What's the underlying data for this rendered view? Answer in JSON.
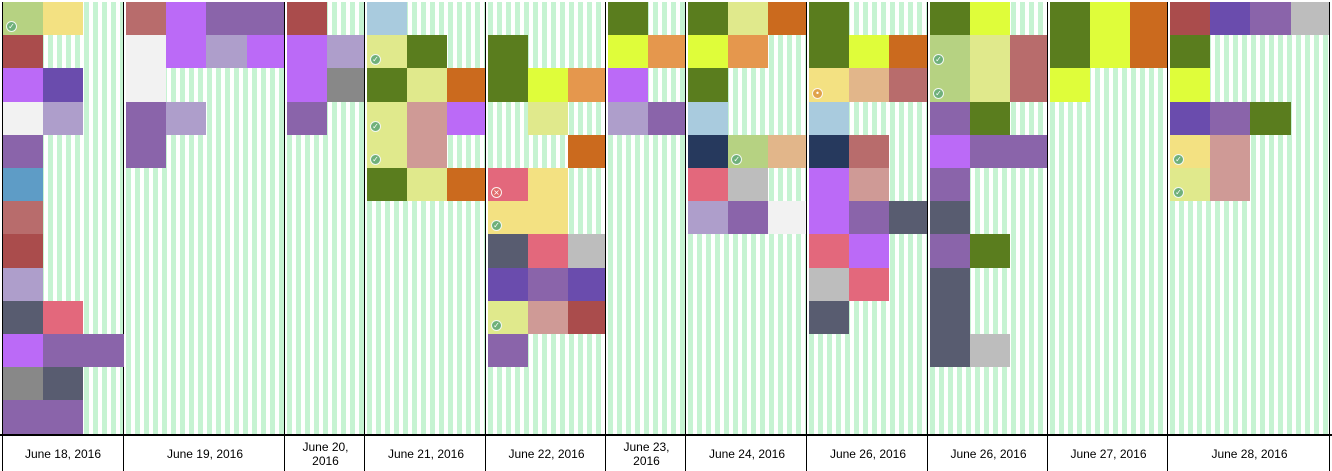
{
  "colors": {
    "olive": "#5a7d1e",
    "lime": "#dffd3a",
    "khaki": "#e0e98c",
    "orange": "#cb6a1e",
    "peach": "#e5974d",
    "violet": "#bb6af7",
    "lavender": "#ae9ecb",
    "purple": "#6a4cad",
    "mauve": "#8a64aa",
    "rose": "#b86c6c",
    "crimson": "#aa4c4c",
    "pink": "#e3687c",
    "dusty": "#cf9a96",
    "slate": "#585c70",
    "navy": "#26395d",
    "sky": "#a9cbde",
    "steel": "#5e9cc6",
    "gray": "#888888",
    "silver": "#bdbdbd",
    "white": "#f2f2f2",
    "sage": "#b6d282",
    "yellow": "#f3e182",
    "tan": "#e2b68a"
  },
  "columns": [
    {
      "label": "June 18, 2016",
      "cells": [
        {
          "col": 0,
          "row": 0,
          "color": "sage",
          "badge": "ok"
        },
        {
          "col": 1,
          "row": 0,
          "color": "yellow"
        },
        {
          "col": 0,
          "row": 1,
          "color": "crimson"
        },
        {
          "col": 0,
          "row": 2,
          "color": "violet"
        },
        {
          "col": 1,
          "row": 2,
          "color": "purple"
        },
        {
          "col": 0,
          "row": 3,
          "color": "white"
        },
        {
          "col": 1,
          "row": 3,
          "color": "lavender"
        },
        {
          "col": 0,
          "row": 4,
          "color": "mauve"
        },
        {
          "col": 0,
          "row": 5,
          "color": "steel"
        },
        {
          "col": 0,
          "row": 6,
          "color": "rose"
        },
        {
          "col": 0,
          "row": 7,
          "color": "crimson"
        },
        {
          "col": 0,
          "row": 8,
          "color": "lavender"
        },
        {
          "col": 0,
          "row": 9,
          "color": "slate"
        },
        {
          "col": 1,
          "row": 9,
          "color": "pink"
        },
        {
          "col": 0,
          "row": 10,
          "color": "violet"
        },
        {
          "col": 1,
          "row": 10,
          "color": "mauve"
        },
        {
          "col": 2,
          "row": 10,
          "color": "mauve"
        },
        {
          "col": 0,
          "row": 11,
          "color": "gray"
        },
        {
          "col": 1,
          "row": 11,
          "color": "slate"
        },
        {
          "col": 0,
          "row": 12,
          "color": "mauve"
        },
        {
          "col": 1,
          "row": 12,
          "color": "mauve"
        }
      ]
    },
    {
      "label": "June 19, 2016",
      "cells": [
        {
          "col": 0,
          "row": 0,
          "color": "rose"
        },
        {
          "col": 1,
          "row": 0,
          "color": "violet"
        },
        {
          "col": 2,
          "row": 0,
          "color": "mauve"
        },
        {
          "col": 3,
          "row": 0,
          "color": "mauve"
        },
        {
          "col": 0,
          "row": 1,
          "color": "white"
        },
        {
          "col": 1,
          "row": 1,
          "color": "violet"
        },
        {
          "col": 2,
          "row": 1,
          "color": "lavender"
        },
        {
          "col": 3,
          "row": 1,
          "color": "violet"
        },
        {
          "col": 0,
          "row": 2,
          "color": "white"
        },
        {
          "col": 0,
          "row": 3,
          "color": "mauve"
        },
        {
          "col": 1,
          "row": 3,
          "color": "lavender"
        },
        {
          "col": 0,
          "row": 4,
          "color": "mauve"
        }
      ]
    },
    {
      "label": "June 20, 2016",
      "cells": [
        {
          "col": 0,
          "row": 0,
          "color": "crimson"
        },
        {
          "col": 0,
          "row": 1,
          "color": "violet"
        },
        {
          "col": 1,
          "row": 1,
          "color": "lavender"
        },
        {
          "col": 0,
          "row": 2,
          "color": "violet"
        },
        {
          "col": 1,
          "row": 2,
          "color": "gray"
        },
        {
          "col": 0,
          "row": 3,
          "color": "mauve"
        }
      ]
    },
    {
      "label": "June 21, 2016",
      "cells": [
        {
          "col": 0,
          "row": 0,
          "color": "sky"
        },
        {
          "col": 0,
          "row": 1,
          "color": "khaki",
          "badge": "ok"
        },
        {
          "col": 1,
          "row": 1,
          "color": "olive"
        },
        {
          "col": 0,
          "row": 2,
          "color": "olive"
        },
        {
          "col": 1,
          "row": 2,
          "color": "khaki"
        },
        {
          "col": 2,
          "row": 2,
          "color": "orange"
        },
        {
          "col": 0,
          "row": 3,
          "color": "khaki",
          "badge": "ok"
        },
        {
          "col": 1,
          "row": 3,
          "color": "dusty"
        },
        {
          "col": 2,
          "row": 3,
          "color": "violet"
        },
        {
          "col": 0,
          "row": 4,
          "color": "khaki",
          "badge": "ok"
        },
        {
          "col": 1,
          "row": 4,
          "color": "dusty"
        },
        {
          "col": 0,
          "row": 5,
          "color": "olive"
        },
        {
          "col": 1,
          "row": 5,
          "color": "khaki"
        },
        {
          "col": 2,
          "row": 5,
          "color": "orange"
        }
      ]
    },
    {
      "label": "June 22, 2016",
      "cells": [
        {
          "col": 0,
          "row": 1,
          "color": "olive"
        },
        {
          "col": 0,
          "row": 2,
          "color": "olive"
        },
        {
          "col": 1,
          "row": 2,
          "color": "lime"
        },
        {
          "col": 2,
          "row": 2,
          "color": "peach"
        },
        {
          "col": 1,
          "row": 3,
          "color": "khaki"
        },
        {
          "col": 2,
          "row": 4,
          "color": "orange"
        },
        {
          "col": 0,
          "row": 5,
          "color": "pink",
          "badge": "err"
        },
        {
          "col": 1,
          "row": 5,
          "color": "yellow"
        },
        {
          "col": 0,
          "row": 6,
          "color": "yellow",
          "badge": "ok"
        },
        {
          "col": 1,
          "row": 6,
          "color": "yellow"
        },
        {
          "col": 0,
          "row": 7,
          "color": "slate"
        },
        {
          "col": 1,
          "row": 7,
          "color": "pink"
        },
        {
          "col": 2,
          "row": 7,
          "color": "silver"
        },
        {
          "col": 0,
          "row": 8,
          "color": "purple"
        },
        {
          "col": 1,
          "row": 8,
          "color": "mauve"
        },
        {
          "col": 2,
          "row": 8,
          "color": "purple"
        },
        {
          "col": 0,
          "row": 9,
          "color": "khaki",
          "badge": "ok"
        },
        {
          "col": 1,
          "row": 9,
          "color": "dusty"
        },
        {
          "col": 2,
          "row": 9,
          "color": "crimson"
        },
        {
          "col": 0,
          "row": 10,
          "color": "mauve"
        }
      ]
    },
    {
      "label": "June 23, 2016",
      "cells": [
        {
          "col": 0,
          "row": 0,
          "color": "olive"
        },
        {
          "col": 0,
          "row": 1,
          "color": "lime"
        },
        {
          "col": 1,
          "row": 1,
          "color": "peach"
        },
        {
          "col": 0,
          "row": 2,
          "color": "violet"
        },
        {
          "col": 0,
          "row": 3,
          "color": "lavender"
        },
        {
          "col": 1,
          "row": 3,
          "color": "mauve"
        }
      ]
    },
    {
      "label": "June 24, 2016",
      "cells": [
        {
          "col": 0,
          "row": 0,
          "color": "olive"
        },
        {
          "col": 1,
          "row": 0,
          "color": "khaki"
        },
        {
          "col": 2,
          "row": 0,
          "color": "orange"
        },
        {
          "col": 0,
          "row": 1,
          "color": "lime"
        },
        {
          "col": 1,
          "row": 1,
          "color": "peach"
        },
        {
          "col": 0,
          "row": 2,
          "color": "olive"
        },
        {
          "col": 0,
          "row": 3,
          "color": "sky"
        },
        {
          "col": 0,
          "row": 4,
          "color": "navy"
        },
        {
          "col": 1,
          "row": 4,
          "color": "sage",
          "badge": "ok"
        },
        {
          "col": 2,
          "row": 4,
          "color": "tan"
        },
        {
          "col": 0,
          "row": 5,
          "color": "pink"
        },
        {
          "col": 1,
          "row": 5,
          "color": "silver"
        },
        {
          "col": 0,
          "row": 6,
          "color": "lavender"
        },
        {
          "col": 1,
          "row": 6,
          "color": "mauve"
        },
        {
          "col": 2,
          "row": 6,
          "color": "white"
        }
      ]
    },
    {
      "label": "June 26, 2016",
      "cells": [
        {
          "col": 0,
          "row": 0,
          "color": "olive"
        },
        {
          "col": 0,
          "row": 1,
          "color": "olive"
        },
        {
          "col": 1,
          "row": 1,
          "color": "lime"
        },
        {
          "col": 2,
          "row": 1,
          "color": "orange"
        },
        {
          "col": 0,
          "row": 2,
          "color": "yellow",
          "badge": "warn"
        },
        {
          "col": 1,
          "row": 2,
          "color": "tan"
        },
        {
          "col": 2,
          "row": 2,
          "color": "rose"
        },
        {
          "col": 0,
          "row": 3,
          "color": "sky"
        },
        {
          "col": 0,
          "row": 4,
          "color": "navy"
        },
        {
          "col": 1,
          "row": 4,
          "color": "rose"
        },
        {
          "col": 0,
          "row": 5,
          "color": "violet"
        },
        {
          "col": 1,
          "row": 5,
          "color": "dusty"
        },
        {
          "col": 0,
          "row": 6,
          "color": "violet"
        },
        {
          "col": 1,
          "row": 6,
          "color": "mauve"
        },
        {
          "col": 2,
          "row": 6,
          "color": "slate"
        },
        {
          "col": 0,
          "row": 7,
          "color": "pink"
        },
        {
          "col": 1,
          "row": 7,
          "color": "violet"
        },
        {
          "col": 0,
          "row": 8,
          "color": "silver"
        },
        {
          "col": 1,
          "row": 8,
          "color": "pink"
        },
        {
          "col": 0,
          "row": 9,
          "color": "slate"
        }
      ]
    },
    {
      "label": "June 26, 2016",
      "cells": [
        {
          "col": 0,
          "row": 0,
          "color": "olive"
        },
        {
          "col": 1,
          "row": 0,
          "color": "lime"
        },
        {
          "col": 0,
          "row": 1,
          "color": "sage",
          "badge": "ok"
        },
        {
          "col": 1,
          "row": 1,
          "color": "khaki"
        },
        {
          "col": 2,
          "row": 1,
          "color": "rose"
        },
        {
          "col": 0,
          "row": 2,
          "color": "sage",
          "badge": "ok"
        },
        {
          "col": 1,
          "row": 2,
          "color": "khaki"
        },
        {
          "col": 2,
          "row": 2,
          "color": "rose"
        },
        {
          "col": 0,
          "row": 3,
          "color": "mauve"
        },
        {
          "col": 1,
          "row": 3,
          "color": "olive"
        },
        {
          "col": 0,
          "row": 4,
          "color": "violet"
        },
        {
          "col": 1,
          "row": 4,
          "color": "mauve"
        },
        {
          "col": 2,
          "row": 4,
          "color": "mauve"
        },
        {
          "col": 0,
          "row": 5,
          "color": "mauve"
        },
        {
          "col": 0,
          "row": 6,
          "color": "slate"
        },
        {
          "col": 0,
          "row": 7,
          "color": "mauve"
        },
        {
          "col": 1,
          "row": 7,
          "color": "olive"
        },
        {
          "col": 0,
          "row": 8,
          "color": "slate"
        },
        {
          "col": 0,
          "row": 9,
          "color": "slate"
        },
        {
          "col": 0,
          "row": 10,
          "color": "slate"
        },
        {
          "col": 1,
          "row": 10,
          "color": "silver"
        }
      ]
    },
    {
      "label": "June 27, 2016",
      "cells": [
        {
          "col": 0,
          "row": 0,
          "color": "olive"
        },
        {
          "col": 1,
          "row": 0,
          "color": "lime"
        },
        {
          "col": 2,
          "row": 0,
          "color": "orange"
        },
        {
          "col": 0,
          "row": 1,
          "color": "olive"
        },
        {
          "col": 1,
          "row": 1,
          "color": "lime"
        },
        {
          "col": 2,
          "row": 1,
          "color": "orange"
        },
        {
          "col": 0,
          "row": 2,
          "color": "lime"
        }
      ]
    },
    {
      "label": "June 28, 2016",
      "cells": [
        {
          "col": 0,
          "row": 0,
          "color": "crimson"
        },
        {
          "col": 1,
          "row": 0,
          "color": "purple"
        },
        {
          "col": 2,
          "row": 0,
          "color": "mauve"
        },
        {
          "col": 3,
          "row": 0,
          "color": "silver"
        },
        {
          "col": 0,
          "row": 1,
          "color": "olive"
        },
        {
          "col": 0,
          "row": 2,
          "color": "lime"
        },
        {
          "col": 0,
          "row": 3,
          "color": "purple"
        },
        {
          "col": 1,
          "row": 3,
          "color": "mauve"
        },
        {
          "col": 2,
          "row": 3,
          "color": "olive"
        },
        {
          "col": 0,
          "row": 4,
          "color": "yellow",
          "badge": "ok"
        },
        {
          "col": 1,
          "row": 4,
          "color": "dusty"
        },
        {
          "col": 0,
          "row": 5,
          "color": "khaki",
          "badge": "ok"
        },
        {
          "col": 1,
          "row": 5,
          "color": "dusty"
        }
      ]
    }
  ]
}
